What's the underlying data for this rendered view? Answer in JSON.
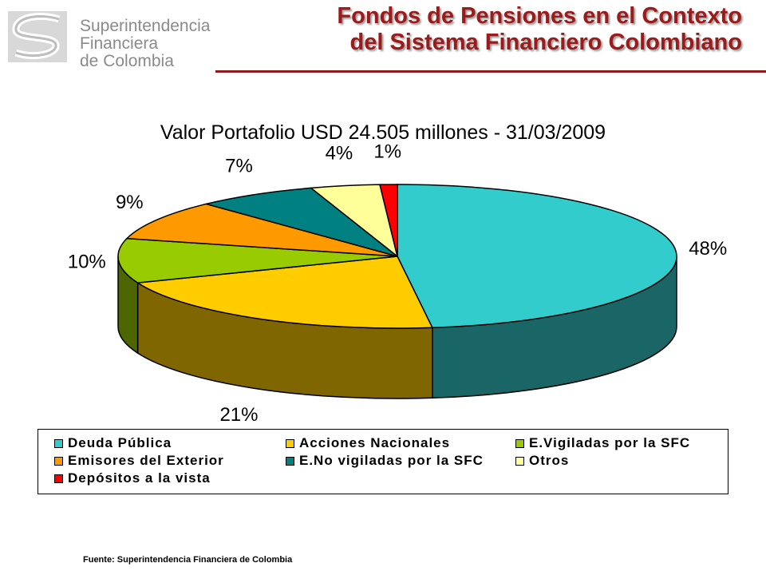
{
  "header": {
    "logo_lines": [
      "Superintendencia",
      "Financiera",
      "de Colombia"
    ],
    "title_lines": [
      "Fondos de Pensiones en el Contexto",
      "del Sistema Financiero Colombiano"
    ]
  },
  "colors": {
    "title": "#9a1b1b",
    "rule": "#8b1d1d",
    "logo": "#8a8a8a"
  },
  "chart_data": {
    "type": "pie",
    "title": "Valor Portafolio USD 24.505  millones - 31/03/2009",
    "three_d": true,
    "slices": [
      {
        "name": "Deuda Pública",
        "value": 48,
        "label": "48%",
        "color": "#33CCCC",
        "side": "#1A6666"
      },
      {
        "name": "Acciones Nacionales",
        "value": 21,
        "label": "21%",
        "color": "#FFCC00",
        "side": "#806600"
      },
      {
        "name": "E.Vigiladas por la SFC",
        "value": 10,
        "label": "10%",
        "color": "#99CC00",
        "side": "#4D6600"
      },
      {
        "name": "Emisores del Exterior",
        "value": 9,
        "label": "9%",
        "color": "#FF9900",
        "side": "#804D00"
      },
      {
        "name": "E.No vigiladas por la SFC",
        "value": 7,
        "label": "7%",
        "color": "#008080",
        "side": "#004040"
      },
      {
        "name": "Otros",
        "value": 4,
        "label": "4%",
        "color": "#FFFF99",
        "side": "#80804D"
      },
      {
        "name": "Depósitos a la vista",
        "value": 1,
        "label": "1%",
        "color": "#FF0000",
        "side": "#800000"
      }
    ],
    "legend_placement": "bottom"
  },
  "footer": {
    "source": "Fuente:  Superintendencia Financiera de Colombia"
  }
}
